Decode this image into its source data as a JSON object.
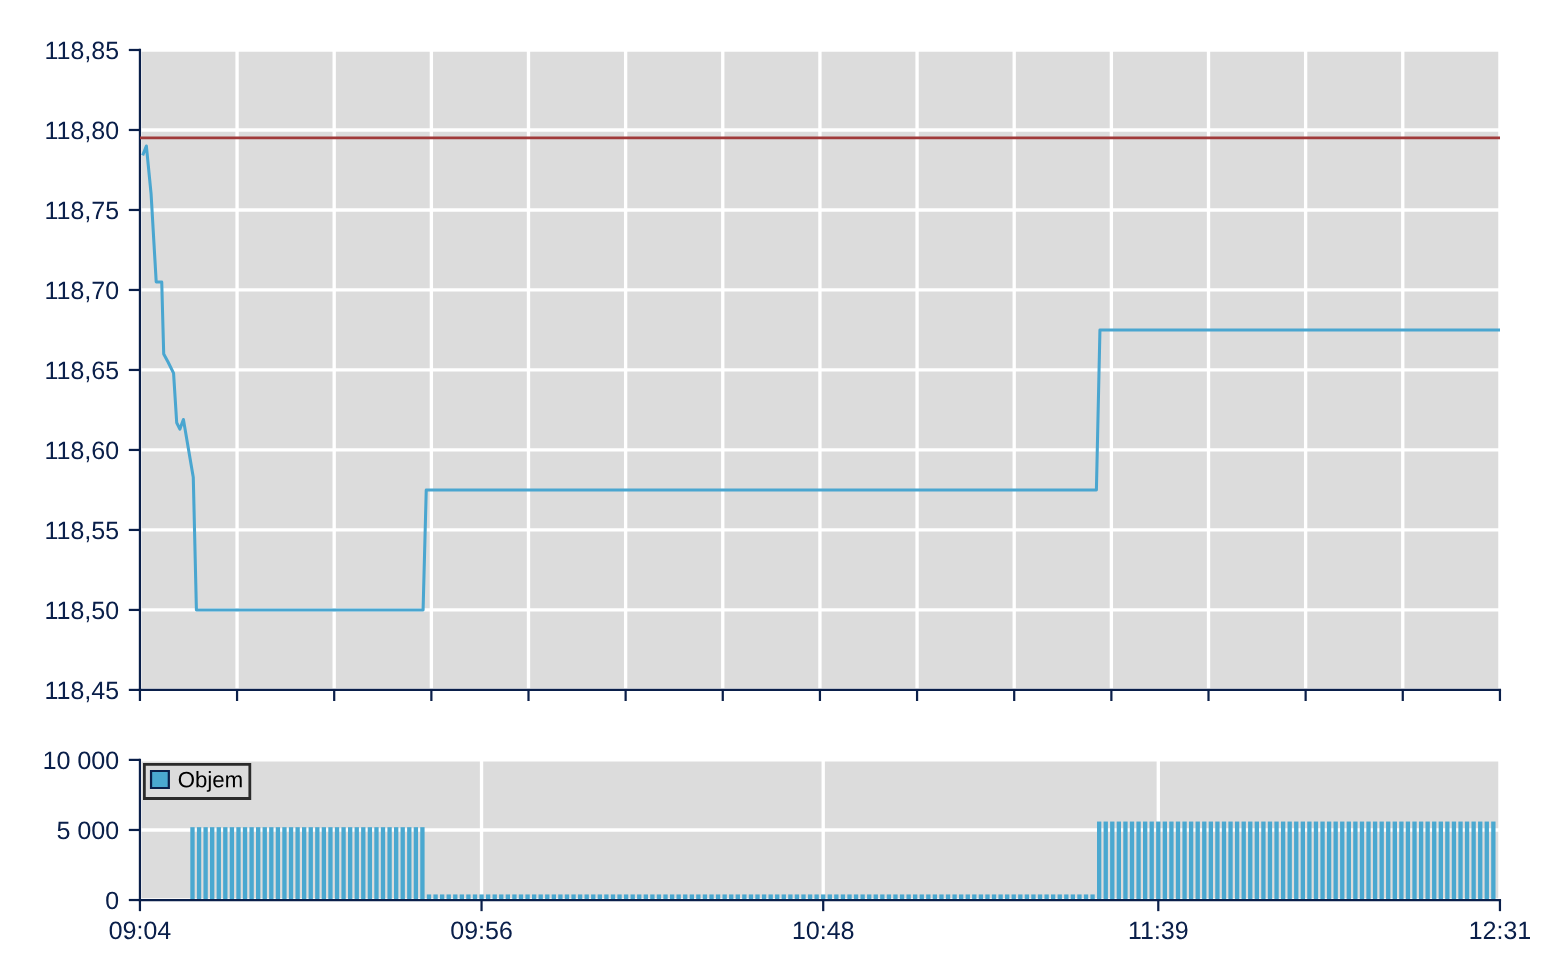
{
  "chart_data": [
    {
      "type": "line",
      "tick_labels": "y",
      "grid": true,
      "legend": false,
      "xlim": [
        9.0667,
        12.5167
      ],
      "xticks": [
        {
          "value": 9.0667,
          "label": null
        },
        {
          "value": 9.3131,
          "label": null
        },
        {
          "value": 9.5595,
          "label": null
        },
        {
          "value": 9.806,
          "label": null
        },
        {
          "value": 10.0524,
          "label": null
        },
        {
          "value": 10.2988,
          "label": null
        },
        {
          "value": 10.5452,
          "label": null
        },
        {
          "value": 10.7917,
          "label": null
        },
        {
          "value": 11.0381,
          "label": null
        },
        {
          "value": 11.2845,
          "label": null
        },
        {
          "value": 11.531,
          "label": null
        },
        {
          "value": 11.7774,
          "label": null
        },
        {
          "value": 12.0238,
          "label": null
        },
        {
          "value": 12.2702,
          "label": null
        },
        {
          "value": 12.5167,
          "label": null
        }
      ],
      "ylim": [
        118.45,
        118.85
      ],
      "yticks": [
        {
          "value": 118.45,
          "label": "118,45"
        },
        {
          "value": 118.5,
          "label": "118,50"
        },
        {
          "value": 118.55,
          "label": "118,55"
        },
        {
          "value": 118.6,
          "label": "118,60"
        },
        {
          "value": 118.65,
          "label": "118,65"
        },
        {
          "value": 118.7,
          "label": "118,70"
        },
        {
          "value": 118.75,
          "label": "118,75"
        },
        {
          "value": 118.8,
          "label": "118,80"
        },
        {
          "value": 118.85,
          "label": "118,85"
        }
      ],
      "ref_lines": [
        {
          "axis": "y",
          "value": 118.795,
          "label": null,
          "color": "#a03a3a"
        }
      ],
      "series": [
        {
          "color": "#4aa6d0",
          "x": [
            9.075,
            9.083,
            9.095,
            9.108,
            9.122,
            9.127,
            9.138,
            9.152,
            9.16,
            9.168,
            9.177,
            9.202,
            9.21,
            9.785,
            9.793,
            11.493,
            11.502,
            12.5167
          ],
          "values": [
            118.785,
            118.79,
            118.76,
            118.705,
            118.705,
            118.66,
            118.655,
            118.648,
            118.617,
            118.613,
            118.619,
            118.583,
            118.5,
            118.5,
            118.575,
            118.575,
            118.675,
            118.675
          ]
        }
      ]
    },
    {
      "type": "bar",
      "legend": "top left",
      "grid": true,
      "xlim": [
        9.0667,
        12.5167
      ],
      "xticks": [
        {
          "value": 9.0667,
          "label": "09:04"
        },
        {
          "value": 9.9333,
          "label": "09:56"
        },
        {
          "value": 10.8,
          "label": "10:48"
        },
        {
          "value": 11.65,
          "label": "11:39"
        },
        {
          "value": 12.5167,
          "label": "12:31"
        }
      ],
      "ylim": [
        0,
        10000
      ],
      "yticks": [
        0,
        {
          "value": 5000,
          "label": "5 000"
        },
        {
          "value": 10000,
          "label": "10 000"
        }
      ],
      "series": [
        {
          "name": "Objem",
          "color": "#4aa8d0",
          "x": [
            9.2,
            9.2167,
            9.2333,
            9.25,
            9.2667,
            9.2833,
            9.3,
            9.3167,
            9.3333,
            9.35,
            9.3667,
            9.3833,
            9.4,
            9.4167,
            9.4333,
            9.45,
            9.4667,
            9.4833,
            9.5,
            9.5167,
            9.5333,
            9.55,
            9.5667,
            9.5833,
            9.6,
            9.6167,
            9.6333,
            9.65,
            9.6667,
            9.6833,
            9.7,
            9.7167,
            9.7333,
            9.75,
            9.7667,
            9.7833,
            9.8,
            9.8167,
            9.8333,
            9.85,
            9.8667,
            9.8833,
            9.9,
            9.9167,
            9.9333,
            9.95,
            9.9667,
            9.9833,
            10.0,
            10.0167,
            10.0333,
            10.05,
            10.0667,
            10.0833,
            10.1,
            10.1167,
            10.1333,
            10.15,
            10.1667,
            10.1833,
            10.2,
            10.2167,
            10.2333,
            10.25,
            10.2667,
            10.2833,
            10.3,
            10.3167,
            10.3333,
            10.35,
            10.3667,
            10.3833,
            10.4,
            10.4167,
            10.4333,
            10.45,
            10.4667,
            10.4833,
            10.5,
            10.5167,
            10.5333,
            10.55,
            10.5667,
            10.5833,
            10.6,
            10.6167,
            10.6333,
            10.65,
            10.6667,
            10.6833,
            10.7,
            10.7167,
            10.7333,
            10.75,
            10.7667,
            10.7833,
            10.8,
            10.8167,
            10.8333,
            10.85,
            10.8667,
            10.8833,
            10.9,
            10.9167,
            10.9333,
            10.95,
            10.9667,
            10.9833,
            11.0,
            11.0167,
            11.0333,
            11.05,
            11.0667,
            11.0833,
            11.1,
            11.1167,
            11.1333,
            11.15,
            11.1667,
            11.1833,
            11.2,
            11.2167,
            11.2333,
            11.25,
            11.2667,
            11.2833,
            11.3,
            11.3167,
            11.3333,
            11.35,
            11.3667,
            11.3833,
            11.4,
            11.4167,
            11.4333,
            11.45,
            11.4667,
            11.4833,
            11.5,
            11.5167,
            11.5333,
            11.55,
            11.5667,
            11.5833,
            11.6,
            11.6167,
            11.6333,
            11.65,
            11.6667,
            11.6833,
            11.7,
            11.7167,
            11.7333,
            11.75,
            11.7667,
            11.7833,
            11.8,
            11.8167,
            11.8333,
            11.85,
            11.8667,
            11.8833,
            11.9,
            11.9167,
            11.9333,
            11.95,
            11.9667,
            11.9833,
            12.0,
            12.0167,
            12.0333,
            12.05,
            12.0667,
            12.0833,
            12.1,
            12.1167,
            12.1333,
            12.15,
            12.1667,
            12.1833,
            12.2,
            12.2167,
            12.2333,
            12.25,
            12.2667,
            12.2833,
            12.3,
            12.3167,
            12.3333,
            12.35,
            12.3667,
            12.3833,
            12.4,
            12.4167,
            12.4333,
            12.45,
            12.4667,
            12.4833,
            12.5
          ],
          "values": [
            5200,
            5200,
            5200,
            5200,
            5200,
            5200,
            5200,
            5200,
            5200,
            5200,
            5200,
            5200,
            5200,
            5200,
            5200,
            5200,
            5200,
            5200,
            5200,
            5200,
            5200,
            5200,
            5200,
            5200,
            5200,
            5200,
            5200,
            5200,
            5200,
            5200,
            5200,
            5200,
            5200,
            5200,
            5200,
            5200,
            400,
            400,
            400,
            400,
            400,
            400,
            400,
            400,
            400,
            400,
            400,
            400,
            400,
            400,
            400,
            400,
            400,
            400,
            400,
            400,
            400,
            400,
            400,
            400,
            400,
            400,
            400,
            400,
            400,
            400,
            400,
            400,
            400,
            400,
            400,
            400,
            400,
            400,
            400,
            400,
            400,
            400,
            400,
            400,
            400,
            400,
            400,
            400,
            400,
            400,
            400,
            400,
            400,
            400,
            400,
            400,
            400,
            400,
            400,
            400,
            400,
            400,
            400,
            400,
            400,
            400,
            400,
            400,
            400,
            400,
            400,
            400,
            400,
            400,
            400,
            400,
            400,
            400,
            400,
            400,
            400,
            400,
            400,
            400,
            400,
            400,
            400,
            400,
            400,
            400,
            400,
            400,
            400,
            400,
            400,
            400,
            400,
            400,
            400,
            400,
            400,
            400,
            5600,
            5600,
            5600,
            5600,
            5600,
            5600,
            5600,
            5600,
            5600,
            5600,
            5600,
            5600,
            5600,
            5600,
            5600,
            5600,
            5600,
            5600,
            5600,
            5600,
            5600,
            5600,
            5600,
            5600,
            5600,
            5600,
            5600,
            5600,
            5600,
            5600,
            5600,
            5600,
            5600,
            5600,
            5600,
            5600,
            5600,
            5600,
            5600,
            5600,
            5600,
            5600,
            5600,
            5600,
            5600,
            5600,
            5600,
            5600,
            5600,
            5600,
            5600,
            5600,
            5600,
            5600,
            5600,
            5600,
            5600,
            5600,
            5600,
            5600,
            5600
          ]
        }
      ]
    }
  ]
}
